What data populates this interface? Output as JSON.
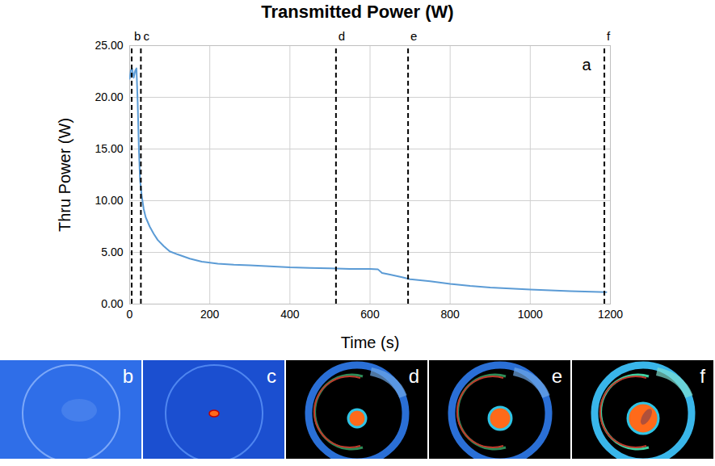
{
  "chart_data": {
    "type": "line",
    "title": "Transmitted Power (W)",
    "x_label": "Time (s)",
    "y_label": "Thru Power (W)",
    "panel_label": "a",
    "x": [
      0,
      3,
      6,
      10,
      14,
      17,
      20,
      23,
      26,
      30,
      35,
      40,
      50,
      60,
      70,
      85,
      100,
      120,
      150,
      180,
      220,
      260,
      300,
      350,
      400,
      450,
      500,
      550,
      600,
      620,
      630,
      650,
      680,
      700,
      750,
      800,
      850,
      900,
      1000,
      1100,
      1190
    ],
    "values": [
      21.8,
      22.6,
      22.8,
      21.9,
      22.6,
      22.8,
      19.5,
      15,
      12,
      10.5,
      9.2,
      8.4,
      7.5,
      6.8,
      6.2,
      5.6,
      5.1,
      4.8,
      4.4,
      4.1,
      3.9,
      3.8,
      3.75,
      3.65,
      3.55,
      3.5,
      3.45,
      3.4,
      3.4,
      3.35,
      3.0,
      2.85,
      2.6,
      2.4,
      2.2,
      1.95,
      1.75,
      1.6,
      1.4,
      1.25,
      1.15
    ],
    "color": "#5b9bd5",
    "xlim": [
      0,
      1200
    ],
    "xticks": [
      0,
      200,
      400,
      600,
      800,
      1000,
      1200
    ],
    "ylim": [
      0,
      25
    ],
    "yticks": [
      {
        "value": 0,
        "label": "0.00"
      },
      {
        "value": 5,
        "label": "5.00"
      },
      {
        "value": 10,
        "label": "10.00"
      },
      {
        "value": 15,
        "label": "15.00"
      },
      {
        "value": 20,
        "label": "20.00"
      },
      {
        "value": 25,
        "label": "25.00"
      }
    ],
    "grid": true,
    "events": [
      {
        "x": 5,
        "label": "b"
      },
      {
        "x": 28,
        "label": "c"
      },
      {
        "x": 515,
        "label": "d"
      },
      {
        "x": 695,
        "label": "e"
      },
      {
        "x": 1185,
        "label": "f"
      }
    ],
    "image_panels": [
      "b",
      "c",
      "d",
      "e",
      "f"
    ]
  }
}
